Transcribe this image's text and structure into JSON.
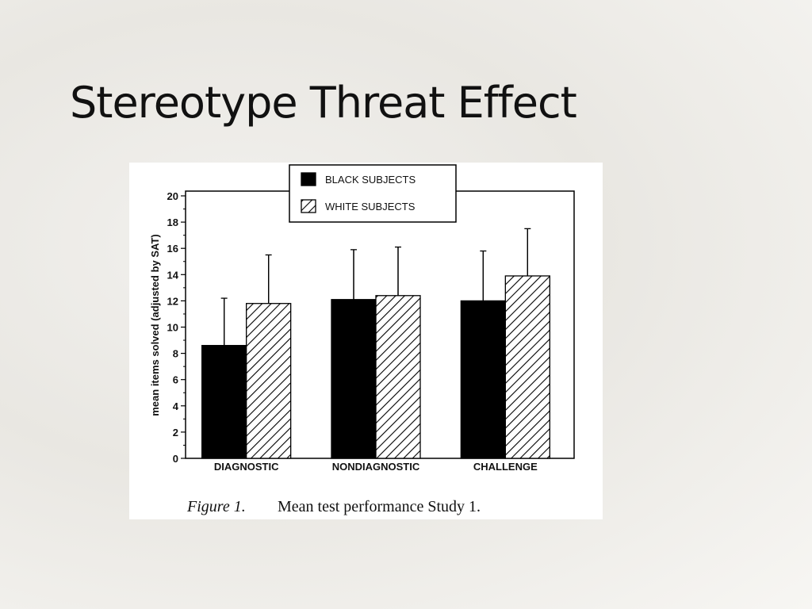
{
  "slide_title": "Stereotype Threat Effect",
  "chart_data": {
    "type": "bar",
    "caption_label": "Figure 1.",
    "caption": "Mean test performance Study 1.",
    "y_label": "mean items solved (adjusted by SAT)",
    "categories": [
      "DIAGNOSTIC",
      "NONDIAGNOSTIC",
      "CHALLENGE"
    ],
    "series": [
      {
        "name": "BLACK SUBJECTS",
        "color": "#000000",
        "pattern": "solid",
        "values": [
          8.6,
          12.1,
          12.0
        ],
        "errors": [
          3.6,
          3.8,
          3.8
        ]
      },
      {
        "name": "WHITE SUBJECTS",
        "color": "#000000",
        "pattern": "hatch",
        "values": [
          11.8,
          12.4,
          13.9
        ],
        "errors": [
          3.7,
          3.7,
          3.6
        ]
      }
    ],
    "ylim": [
      0,
      20
    ],
    "yticks": [
      0,
      2,
      4,
      6,
      8,
      10,
      12,
      14,
      16,
      18,
      20
    ],
    "legend": "top"
  }
}
